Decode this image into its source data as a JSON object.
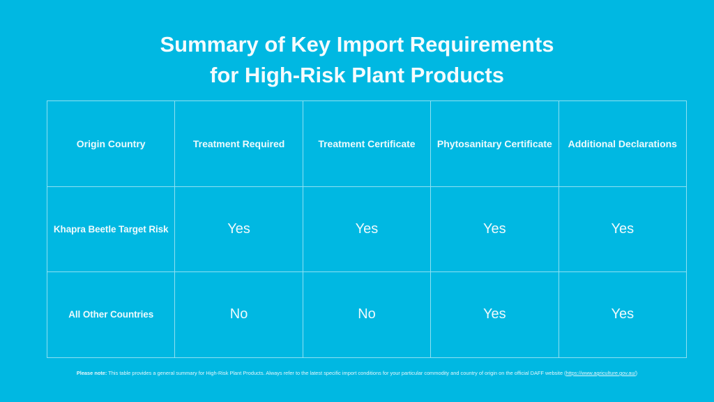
{
  "title": {
    "line1": "Summary of Key Import Requirements",
    "line2": "for High-Risk Plant Products"
  },
  "table": {
    "headers": [
      "Origin Country",
      "Treatment Required",
      "Treatment Certificate",
      "Phytosanitary Certificate",
      "Additional Declarations"
    ],
    "rows": [
      {
        "origin": "Khapra Beetle Target Risk",
        "values": [
          "Yes",
          "Yes",
          "Yes",
          "Yes"
        ]
      },
      {
        "origin": "All Other Countries",
        "values": [
          "No",
          "No",
          "Yes",
          "Yes"
        ]
      }
    ]
  },
  "note": {
    "label": "Please note:",
    "text": " This table provides a general summary for High-Risk Plant Products. Always refer to the latest specific import conditions for your particular commodity and country of origin on the official DAFF website (",
    "link": "https://www.agriculture.gov.au/",
    "suffix": ")"
  },
  "colors": {
    "background": "#00b8e2",
    "border": "#8fe0f2",
    "text": "#ffffff"
  }
}
